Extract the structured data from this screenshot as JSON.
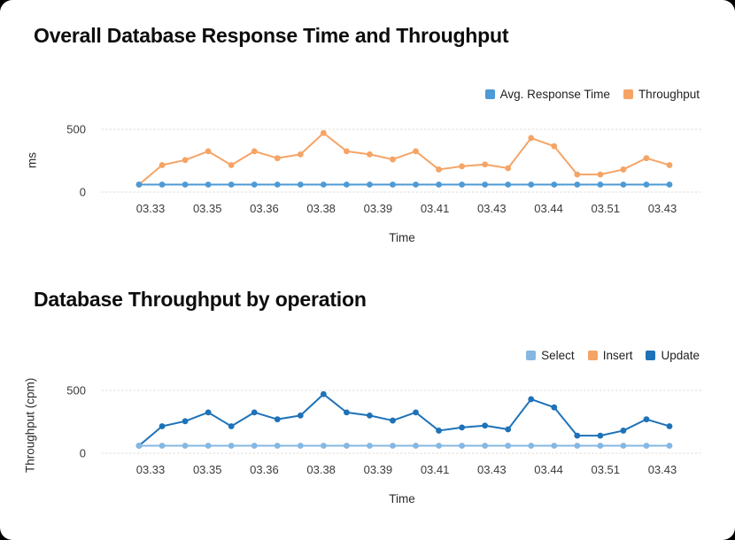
{
  "page": {
    "background_color": "#000000",
    "card_color": "#ffffff",
    "gridline_color": "#e3e3e3",
    "tick_color": "#3a3a3a"
  },
  "chart_data": [
    {
      "type": "line",
      "title": "Overall Database Response Time and Throughput",
      "xlabel": "Time",
      "ylabel": "ms",
      "ylim": [
        0,
        500
      ],
      "ytick_labels": [
        "500",
        "0"
      ],
      "ytick_values": [
        500,
        0
      ],
      "grid": "horizontal-dotted",
      "legend_position": "top-right",
      "xticks": [
        "03.33",
        "03.35",
        "03.36",
        "03.38",
        "03.39",
        "03.41",
        "03.43",
        "03.44",
        "03.51",
        "03.43"
      ],
      "series": [
        {
          "name": "Avg. Response Time",
          "color": "#4D9AD5",
          "values": [
            60,
            60,
            60,
            60,
            60,
            60,
            60,
            60,
            60,
            60,
            60,
            60,
            60,
            60,
            60,
            60,
            60,
            60,
            60,
            60,
            60,
            60,
            60,
            60
          ]
        },
        {
          "name": "Throughput",
          "color": "#F5A466",
          "values": [
            60,
            215,
            255,
            325,
            215,
            325,
            270,
            300,
            470,
            325,
            300,
            260,
            325,
            180,
            205,
            220,
            190,
            430,
            365,
            140,
            140,
            180,
            270,
            215
          ]
        }
      ]
    },
    {
      "type": "line",
      "title": "Database Throughput by operation",
      "xlabel": "Time",
      "ylabel": "Throughput (cpm)",
      "ylim": [
        0,
        500
      ],
      "ytick_labels": [
        "500",
        "0"
      ],
      "ytick_values": [
        500,
        0
      ],
      "grid": "horizontal-dotted",
      "legend_position": "top-right",
      "xticks": [
        "03.33",
        "03.35",
        "03.36",
        "03.38",
        "03.39",
        "03.41",
        "03.43",
        "03.44",
        "03.51",
        "03.43"
      ],
      "series": [
        {
          "name": "Select",
          "color": "#85B7E2",
          "values": [
            60,
            60,
            60,
            60,
            60,
            60,
            60,
            60,
            60,
            60,
            60,
            60,
            60,
            60,
            60,
            60,
            60,
            60,
            60,
            60,
            60,
            60,
            60,
            60
          ]
        },
        {
          "name": "Insert",
          "color": "#F5A466",
          "values": []
        },
        {
          "name": "Update",
          "color": "#1E72B8",
          "values": [
            60,
            215,
            255,
            325,
            215,
            325,
            270,
            300,
            470,
            325,
            300,
            260,
            325,
            180,
            205,
            220,
            190,
            430,
            365,
            140,
            140,
            180,
            270,
            215
          ]
        }
      ]
    }
  ]
}
